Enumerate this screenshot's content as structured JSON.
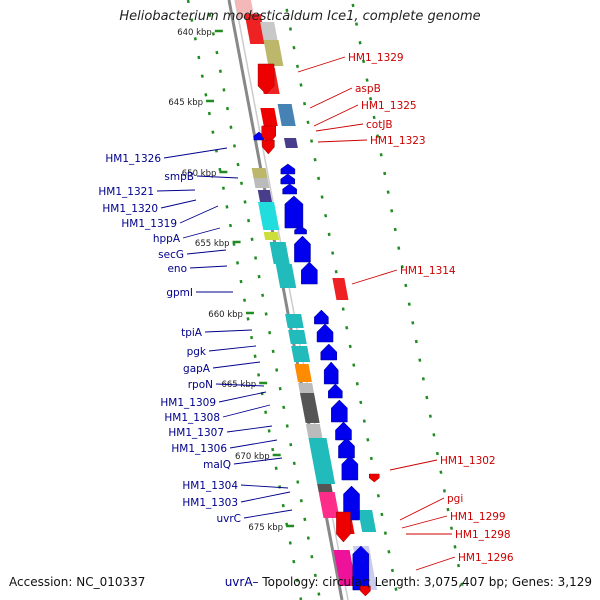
{
  "title": "Heliobacterium modesticaldum Ice1, complete genome",
  "footer": {
    "accession": "Accession: NC_010337",
    "gene_tag": "uvrA",
    "summary": "Topology: circular; Length: 3,075,407 bp; Genes: 3,129"
  },
  "scale_labels": [
    "640 kbp",
    "645 kbp",
    "650 kbp",
    "655 kbp",
    "660 kbp",
    "665 kbp",
    "670 kbp",
    "675 kbp"
  ],
  "left_labels": [
    "HM1_1326",
    "smpB",
    "HM1_1321",
    "HM1_1320",
    "HM1_1319",
    "hppA",
    "secG",
    "eno",
    "gpmI",
    "tpiA",
    "pgk",
    "gapA",
    "rpoN",
    "HM1_1309",
    "HM1_1308",
    "HM1_1307",
    "HM1_1306",
    "malQ",
    "HM1_1304",
    "HM1_1303",
    "uvrC"
  ],
  "right_labels": [
    "HM1_1329",
    "aspB",
    "HM1_1325",
    "cotJB",
    "HM1_1323",
    "HM1_1314",
    "HM1_1302",
    "pgi",
    "HM1_1299",
    "HM1_1298",
    "HM1_1296"
  ],
  "colors": {
    "forward_label": "#00008b",
    "reverse_label": "#cc0000",
    "forward_arrow": "#0000ee",
    "reverse_arrow": "#ee0000",
    "backbone": "#888888",
    "ticks": "#228b22"
  }
}
